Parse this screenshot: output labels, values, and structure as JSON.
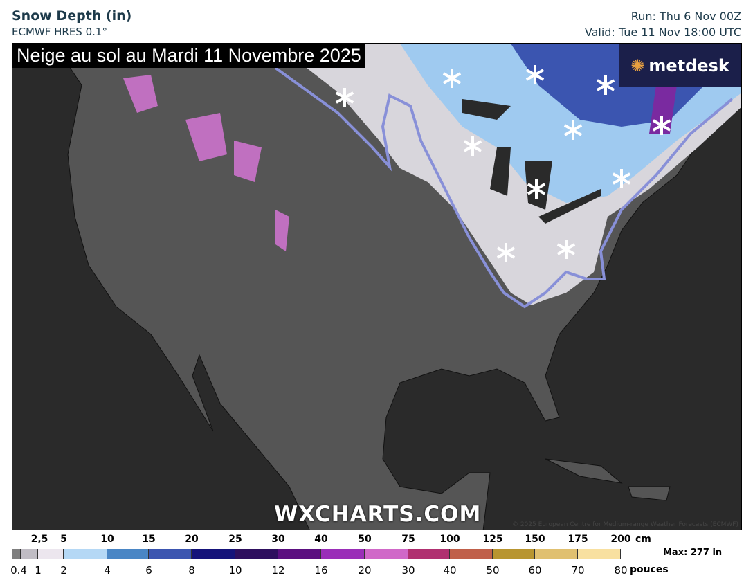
{
  "header": {
    "title": "Snow Depth (in)",
    "model": "ECMWF HRES 0.1°",
    "run": "Run: Thu 6 Nov 00Z",
    "valid": "Valid: Tue 11 Nov 18:00 UTC"
  },
  "map": {
    "caption": "Neige au sol au Mardi 11 Novembre 2025",
    "logo": "metdesk",
    "watermark": "WXCHARTS.COM",
    "copyright": "© 2025 European Centre for Medium-range Weather Forecasts (ECMWF)",
    "contour_color": "#8890d8",
    "annotation_icon": "snowflake-icon"
  },
  "legend": {
    "cm_labels": [
      "2,5",
      "5",
      "10",
      "15",
      "20",
      "25",
      "30",
      "40",
      "50",
      "75",
      "100",
      "125",
      "150",
      "175",
      "200"
    ],
    "cm_unit": "cm",
    "inch_labels": [
      "0.4",
      "1",
      "2",
      "4",
      "6",
      "8",
      "10",
      "12",
      "16",
      "20",
      "30",
      "40",
      "50",
      "60",
      "70",
      "80"
    ],
    "inch_unit": "pouces",
    "colors": [
      "#7f7f7f",
      "#c0bcc4",
      "#ece6ee",
      "#b5d8f5",
      "#4a86c5",
      "#3b55b0",
      "#15137a",
      "#2e0f5e",
      "#5b0f80",
      "#9a2eb8",
      "#d068c8",
      "#b03070",
      "#c0604a",
      "#b89530",
      "#e0c070",
      "#f8e0a0"
    ],
    "max": "Max: 277 in"
  }
}
